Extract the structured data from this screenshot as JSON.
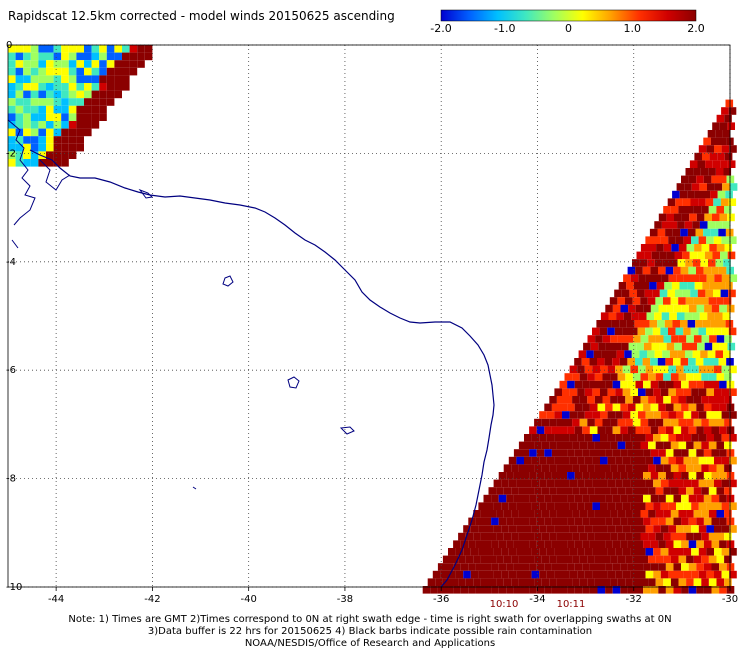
{
  "title": "Rapidscat 12.5km corrected - model winds 20150625 ascending",
  "colorbar": {
    "range": [
      -2.0,
      2.0
    ],
    "ticks": [
      "-2.0",
      "-1.0",
      "0",
      "1.0",
      "2.0"
    ],
    "stops": [
      "#0000d0",
      "#0060ff",
      "#00c0ff",
      "#40e8c0",
      "#a0ff60",
      "#ffff00",
      "#ffa000",
      "#ff3000",
      "#d00000",
      "#8b0000"
    ]
  },
  "map": {
    "lon_range": [
      -45,
      -30
    ],
    "lat_range": [
      -10,
      0
    ],
    "x_ticks": [
      "-44",
      "-42",
      "-40",
      "-38",
      "-36",
      "-34",
      "-32",
      "-30"
    ],
    "y_ticks": [
      "0",
      "-2",
      "-4",
      "-6",
      "-8",
      "-10"
    ],
    "coast_color": "#000080",
    "grid": "dotted"
  },
  "times": [
    "10:10",
    "10:11"
  ],
  "notes": {
    "line1": "Note: 1) Times are GMT 2)Times correspond to 0N at right swath edge - time is right swath for overlapping swaths at 0N",
    "line2": "3)Data buffer is 22 hrs for 20150625 4) Black barbs indicate possible rain contamination",
    "line3": "NOAA/NESDIS/Office of Research and Applications"
  }
}
